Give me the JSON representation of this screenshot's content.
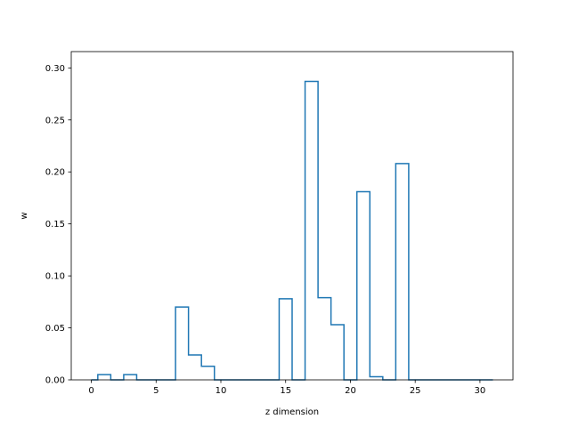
{
  "chart_data": {
    "type": "step",
    "xlabel": "z dimension",
    "ylabel": "w",
    "xlim": [
      -1.55,
      32.55
    ],
    "ylim": [
      0,
      0.3157
    ],
    "x_ticks": [
      0,
      5,
      10,
      15,
      20,
      25,
      30
    ],
    "y_ticks": [
      0.0,
      0.05,
      0.1,
      0.15,
      0.2,
      0.25,
      0.3
    ],
    "x_tick_labels": [
      "0",
      "5",
      "10",
      "15",
      "20",
      "25",
      "30"
    ],
    "y_tick_labels": [
      "0.00",
      "0.05",
      "0.10",
      "0.15",
      "0.20",
      "0.25",
      "0.30"
    ],
    "series": [
      {
        "color": "#1f77b4",
        "style": "steps-mid",
        "x": [
          0,
          1,
          2,
          3,
          4,
          5,
          6,
          7,
          8,
          9,
          10,
          11,
          12,
          13,
          14,
          15,
          16,
          17,
          18,
          19,
          20,
          21,
          22,
          23,
          24,
          25,
          26,
          27,
          28,
          29,
          30,
          31
        ],
        "values": [
          0,
          0.005,
          0,
          0.005,
          0,
          0,
          0,
          0.07,
          0.024,
          0.013,
          0,
          0,
          0,
          0,
          0,
          0.078,
          0,
          0.287,
          0.079,
          0.053,
          0,
          0.181,
          0.003,
          0,
          0.208,
          0,
          0,
          0,
          0,
          0,
          0,
          0
        ]
      }
    ]
  }
}
